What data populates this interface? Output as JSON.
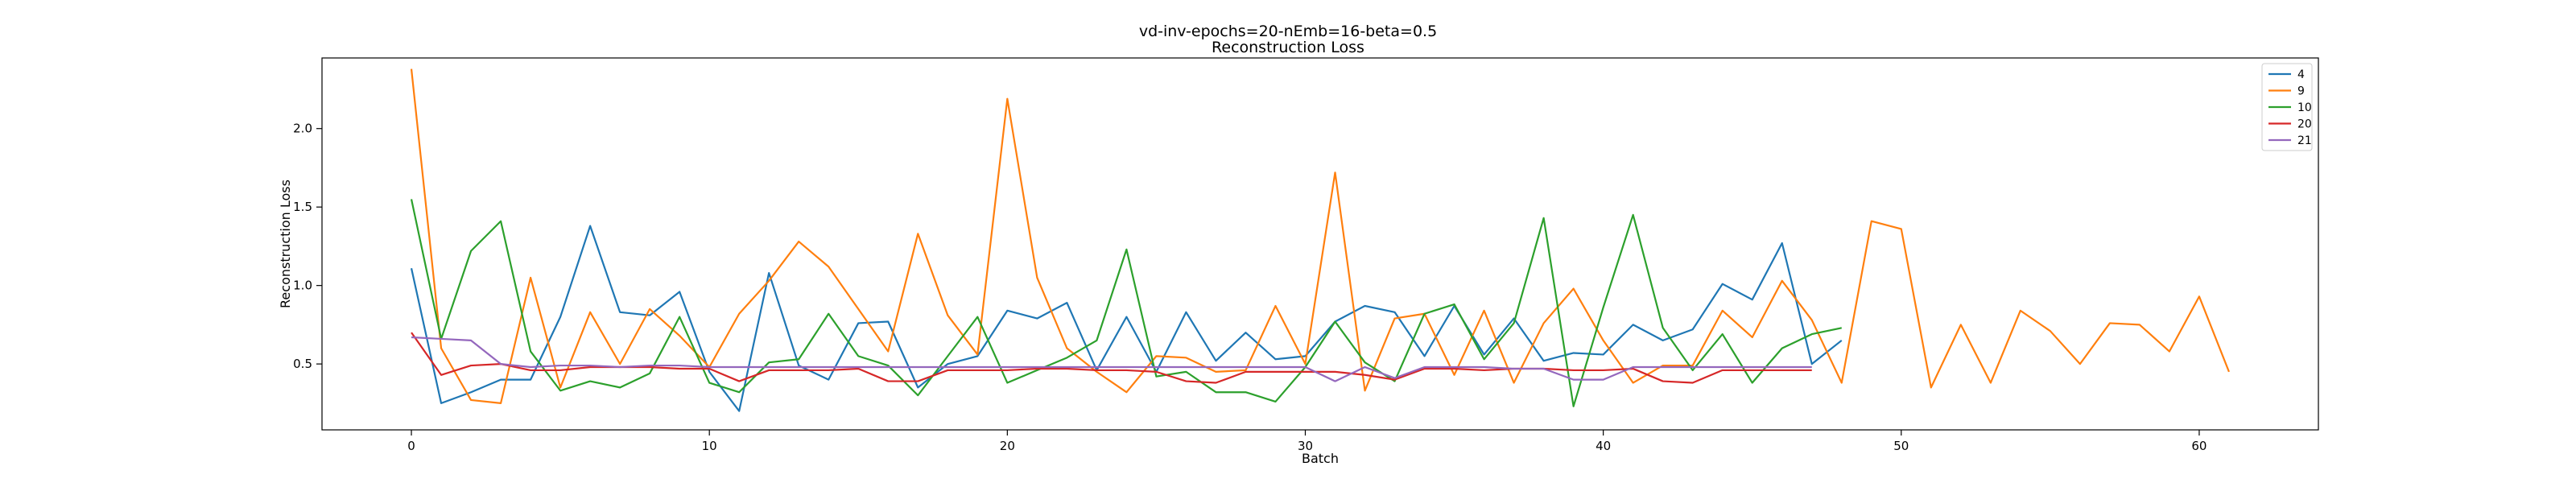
{
  "chart_data": {
    "type": "line",
    "title": "vd-inv-epochs=20-nEmb=16-beta=0.5",
    "subtitle": "Reconstruction Loss",
    "xlabel": "Batch",
    "ylabel": "Reconstruction Loss",
    "xlim": [
      -3,
      64
    ],
    "ylim": [
      0.08,
      2.45
    ],
    "xticks": [
      0,
      10,
      20,
      30,
      40,
      50,
      60
    ],
    "yticks": [
      0.5,
      1.0,
      1.5,
      2.0
    ],
    "ytick_labels": [
      "0.5",
      "1.0",
      "1.5",
      "2.0"
    ],
    "grid": false,
    "legend_position": "top-right",
    "series": [
      {
        "name": "4",
        "color": "#1f77b4",
        "x": [
          0,
          1,
          2,
          3,
          4,
          5,
          6,
          7,
          8,
          9,
          10,
          11,
          12,
          13,
          14,
          15,
          16,
          17,
          18,
          19,
          20,
          21,
          22,
          23,
          24,
          25,
          26,
          27,
          28,
          29,
          30,
          31,
          32,
          33,
          34,
          35,
          36,
          37,
          38,
          39,
          40,
          41,
          42,
          43,
          44,
          45,
          46,
          47,
          48
        ],
        "values": [
          1.11,
          0.25,
          0.32,
          0.4,
          0.4,
          0.8,
          1.38,
          0.83,
          0.81,
          0.96,
          0.45,
          0.2,
          1.08,
          0.49,
          0.4,
          0.76,
          0.77,
          0.35,
          0.5,
          0.55,
          0.84,
          0.79,
          0.89,
          0.46,
          0.8,
          0.45,
          0.83,
          0.52,
          0.7,
          0.53,
          0.55,
          0.77,
          0.87,
          0.83,
          0.55,
          0.87,
          0.56,
          0.79,
          0.52,
          0.57,
          0.56,
          0.75,
          0.65,
          0.72,
          1.01,
          0.91,
          1.27,
          0.5,
          0.65
        ]
      },
      {
        "name": "9",
        "color": "#ff7f0e",
        "x": [
          0,
          1,
          2,
          3,
          4,
          5,
          6,
          7,
          8,
          9,
          10,
          11,
          12,
          13,
          14,
          15,
          16,
          17,
          18,
          19,
          20,
          21,
          22,
          23,
          24,
          25,
          26,
          27,
          28,
          29,
          30,
          31,
          32,
          33,
          34,
          35,
          36,
          37,
          38,
          39,
          40,
          41,
          42,
          43,
          44,
          45,
          46,
          47,
          48,
          49,
          50,
          51,
          52,
          53,
          54,
          55,
          56,
          57,
          58,
          59,
          60,
          61
        ],
        "values": [
          2.38,
          0.6,
          0.27,
          0.25,
          1.05,
          0.35,
          0.83,
          0.5,
          0.85,
          0.68,
          0.48,
          0.82,
          1.03,
          1.28,
          1.12,
          0.85,
          0.58,
          1.33,
          0.81,
          0.56,
          2.19,
          1.05,
          0.6,
          0.45,
          0.32,
          0.55,
          0.54,
          0.45,
          0.46,
          0.87,
          0.5,
          1.72,
          0.33,
          0.79,
          0.82,
          0.43,
          0.84,
          0.38,
          0.76,
          0.98,
          0.65,
          0.38,
          0.49,
          0.49,
          0.84,
          0.67,
          1.03,
          0.78,
          0.38,
          1.41,
          1.36,
          0.35,
          0.75,
          0.38,
          0.84,
          0.71,
          0.5,
          0.76,
          0.75,
          0.58,
          0.93,
          0.45
        ]
      },
      {
        "name": "10",
        "color": "#2ca02c",
        "x": [
          0,
          1,
          2,
          3,
          4,
          5,
          6,
          7,
          8,
          9,
          10,
          11,
          12,
          13,
          14,
          15,
          16,
          17,
          18,
          19,
          20,
          21,
          22,
          23,
          24,
          25,
          26,
          27,
          28,
          29,
          30,
          31,
          32,
          33,
          34,
          35,
          36,
          37,
          38,
          39,
          40,
          41,
          42,
          43,
          44,
          45,
          46,
          47,
          48
        ],
        "values": [
          1.55,
          0.66,
          1.22,
          1.41,
          0.58,
          0.33,
          0.39,
          0.35,
          0.44,
          0.8,
          0.38,
          0.32,
          0.51,
          0.53,
          0.82,
          0.55,
          0.49,
          0.3,
          0.55,
          0.8,
          0.38,
          0.46,
          0.54,
          0.65,
          1.23,
          0.42,
          0.45,
          0.32,
          0.32,
          0.26,
          0.48,
          0.77,
          0.51,
          0.39,
          0.82,
          0.88,
          0.53,
          0.76,
          1.43,
          0.23,
          0.86,
          1.45,
          0.73,
          0.46,
          0.69,
          0.38,
          0.6,
          0.69,
          0.73
        ]
      },
      {
        "name": "20",
        "color": "#d62728",
        "x": [
          0,
          1,
          2,
          3,
          4,
          5,
          6,
          7,
          8,
          9,
          10,
          11,
          12,
          13,
          14,
          15,
          16,
          17,
          18,
          19,
          20,
          21,
          22,
          23,
          24,
          25,
          26,
          27,
          28,
          29,
          30,
          31,
          32,
          33,
          34,
          35,
          36,
          37,
          38,
          39,
          40,
          41,
          42,
          43,
          44,
          45,
          46,
          47
        ],
        "values": [
          0.7,
          0.43,
          0.49,
          0.5,
          0.46,
          0.46,
          0.48,
          0.48,
          0.48,
          0.47,
          0.47,
          0.39,
          0.46,
          0.46,
          0.46,
          0.47,
          0.39,
          0.39,
          0.46,
          0.46,
          0.46,
          0.47,
          0.47,
          0.46,
          0.46,
          0.45,
          0.39,
          0.38,
          0.45,
          0.45,
          0.45,
          0.45,
          0.43,
          0.4,
          0.47,
          0.47,
          0.46,
          0.47,
          0.47,
          0.46,
          0.46,
          0.47,
          0.39,
          0.38,
          0.46,
          0.46,
          0.46,
          0.46
        ]
      },
      {
        "name": "21",
        "color": "#9467bd",
        "x": [
          0,
          1,
          2,
          3,
          4,
          5,
          6,
          7,
          8,
          9,
          10,
          11,
          12,
          13,
          14,
          15,
          16,
          17,
          18,
          19,
          20,
          21,
          22,
          23,
          24,
          25,
          26,
          27,
          28,
          29,
          30,
          31,
          32,
          33,
          34,
          35,
          36,
          37,
          38,
          39,
          40,
          41,
          42,
          43,
          44,
          45,
          46,
          47
        ],
        "values": [
          0.67,
          0.66,
          0.65,
          0.5,
          0.48,
          0.49,
          0.49,
          0.48,
          0.49,
          0.49,
          0.48,
          0.48,
          0.48,
          0.48,
          0.48,
          0.48,
          0.48,
          0.48,
          0.48,
          0.48,
          0.48,
          0.48,
          0.48,
          0.48,
          0.48,
          0.48,
          0.48,
          0.48,
          0.48,
          0.48,
          0.48,
          0.39,
          0.48,
          0.41,
          0.48,
          0.48,
          0.48,
          0.47,
          0.47,
          0.4,
          0.4,
          0.48,
          0.48,
          0.48,
          0.48,
          0.48,
          0.48,
          0.48
        ]
      }
    ]
  }
}
